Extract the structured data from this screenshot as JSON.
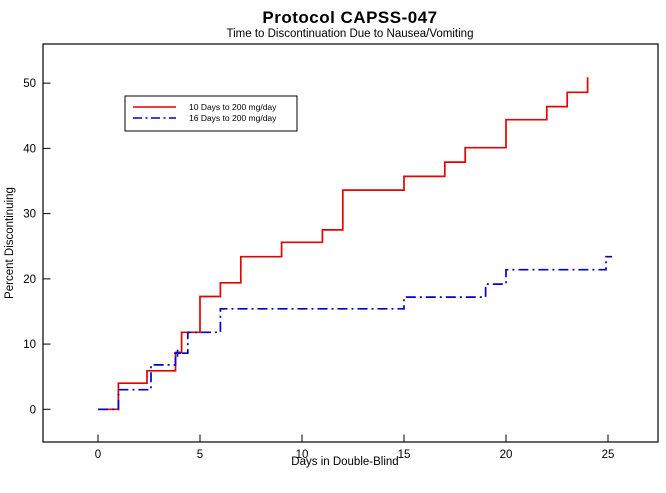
{
  "header": {
    "title": "Protocol CAPSS-047",
    "subtitle": "Time to Discontinuation Due to Nausea/Vomiting"
  },
  "chart_data": {
    "type": "step",
    "title": "Protocol CAPSS-047",
    "subtitle": "Time to Discontinuation Due to Nausea/Vomiting",
    "xlabel": "Days in Double-Blind",
    "ylabel": "Percent Discontinuing",
    "x_ticks": [
      0,
      5,
      10,
      15,
      20,
      25
    ],
    "y_ticks": [
      0,
      10,
      20,
      30,
      40,
      50
    ],
    "xlim": [
      -2.7,
      27.5
    ],
    "ylim": [
      -5,
      56
    ],
    "grid": false,
    "legend_position": "upper-left-inside",
    "series": [
      {
        "name": "10 Days to 200 mg/day",
        "color": "#e60000",
        "line_style": "solid",
        "points": [
          [
            0,
            0
          ],
          [
            1,
            4.0
          ],
          [
            2.4,
            5.9
          ],
          [
            3.8,
            8.7
          ],
          [
            4.1,
            11.8
          ],
          [
            5,
            17.3
          ],
          [
            6,
            19.4
          ],
          [
            7,
            23.4
          ],
          [
            9,
            25.6
          ],
          [
            11,
            27.5
          ],
          [
            12,
            33.6
          ],
          [
            15,
            35.7
          ],
          [
            17,
            37.9
          ],
          [
            18,
            40.1
          ],
          [
            20,
            44.4
          ],
          [
            22,
            46.4
          ],
          [
            23,
            48.6
          ],
          [
            24,
            50.9
          ]
        ]
      },
      {
        "name": "16 Days to 200 mg/day",
        "color": "#0000c8",
        "line_style": "dash-dot",
        "points": [
          [
            0,
            0
          ],
          [
            1,
            3.0
          ],
          [
            2.6,
            6.8
          ],
          [
            3.8,
            8.6
          ],
          [
            4.4,
            11.8
          ],
          [
            6,
            15.4
          ],
          [
            15,
            17.2
          ],
          [
            19,
            19.2
          ],
          [
            20,
            21.4
          ],
          [
            24.9,
            23.4
          ],
          [
            25.2,
            23.4
          ]
        ]
      }
    ],
    "censor_marks": [
      {
        "series": "16 Days to 200 mg/day",
        "day": 3.9,
        "pct": 8.6
      }
    ]
  }
}
